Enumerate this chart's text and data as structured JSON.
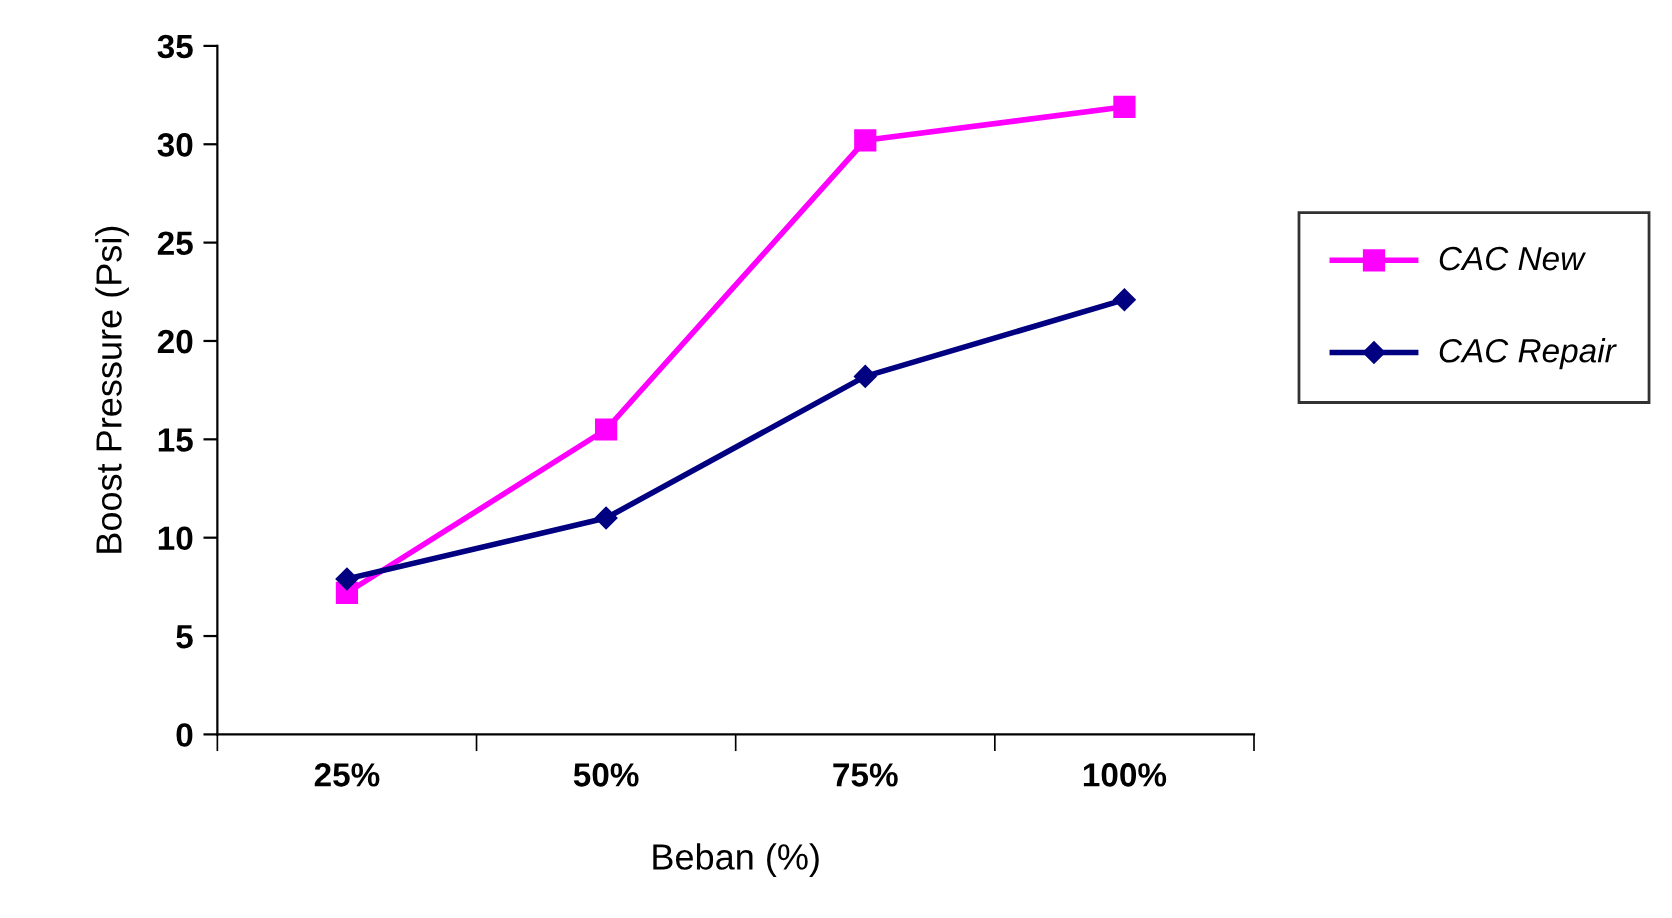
{
  "chart_data": {
    "type": "line",
    "xlabel": "Beban (%)",
    "ylabel": "Boost Pressure (Psi)",
    "categories": [
      "25%",
      "50%",
      "75%",
      "100%"
    ],
    "series": [
      {
        "name": "CAC New",
        "color": "#ff00ff",
        "marker": "square",
        "values": [
          7.2,
          15.5,
          30.2,
          31.9
        ]
      },
      {
        "name": "CAC Repair",
        "color": "#000080",
        "marker": "diamond",
        "values": [
          7.9,
          11.0,
          18.2,
          22.1
        ]
      }
    ],
    "ylim": [
      0,
      35
    ],
    "yticks": [
      0,
      5,
      10,
      15,
      20,
      25,
      30,
      35
    ],
    "grid": false,
    "legend": "right",
    "line_style": "solid"
  }
}
